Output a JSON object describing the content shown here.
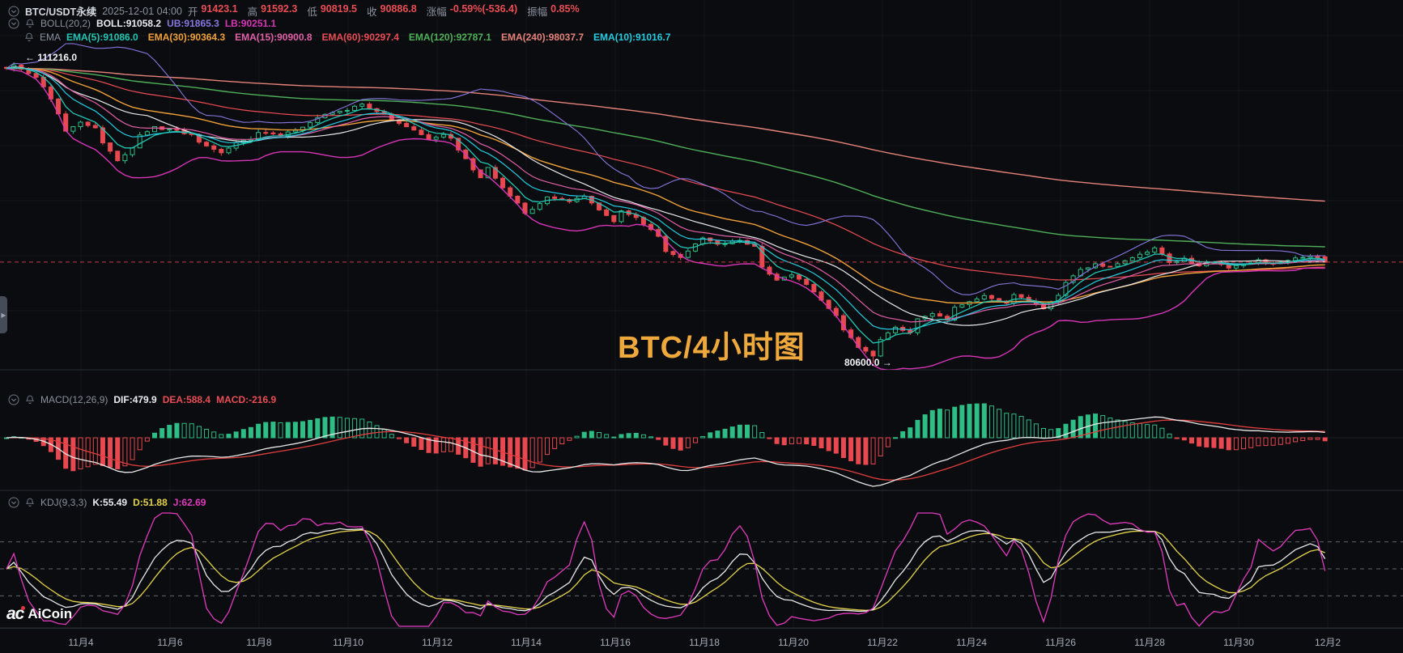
{
  "header": {
    "symbol": "BTC/USDT永续",
    "datetime": "2025-12-01 04:00",
    "ohlc": [
      {
        "label": "开",
        "value": "91423.1"
      },
      {
        "label": "高",
        "value": "91592.3"
      },
      {
        "label": "低",
        "value": "90819.5"
      },
      {
        "label": "收",
        "value": "90886.8"
      },
      {
        "label": "涨幅",
        "value": "-0.59%(-536.4)"
      },
      {
        "label": "振幅",
        "value": "0.85%"
      }
    ],
    "boll": {
      "name": "BOLL(20,2)",
      "mid_label": "BOLL:91058.2",
      "ub_label": "UB:91865.3",
      "lb_label": "LB:90251.1"
    },
    "ema": {
      "name": "EMA",
      "items": [
        {
          "label": "EMA(5):91086.0",
          "color": "#21c7b4"
        },
        {
          "label": "EMA(30):90364.3",
          "color": "#f0a13a"
        },
        {
          "label": "EMA(15):90900.8",
          "color": "#e160a8"
        },
        {
          "label": "EMA(60):90297.4",
          "color": "#ea4d55"
        },
        {
          "label": "EMA(120):92787.1",
          "color": "#4fb05a"
        },
        {
          "label": "EMA(240):98037.7",
          "color": "#e5837a"
        },
        {
          "label": "EMA(10):91016.7",
          "color": "#25cde3"
        }
      ]
    }
  },
  "macd_panel": {
    "name": "MACD(12,26,9)",
    "dif_label": "DIF:479.9",
    "dea_label": "DEA:588.4",
    "macd_label": "MACD:-216.9"
  },
  "kdj_panel": {
    "name": "KDJ(9,3,3)",
    "k_label": "K:55.49",
    "d_label": "D:51.88",
    "j_label": "J:62.69"
  },
  "annotations": {
    "high_label": "← 111216.0",
    "low_label": "80600.0 →",
    "watermark_title": "BTC/4小时图"
  },
  "branding": {
    "logo_mark": "ac",
    "logo_text": "AiCoin"
  },
  "x_axis": {
    "ticks": [
      "11月4",
      "11月6",
      "11月8",
      "11月10",
      "11月12",
      "11月14",
      "11月16",
      "11月18",
      "11月20",
      "11月22",
      "11月24",
      "11月26",
      "11月28",
      "11月30",
      "12月2"
    ]
  },
  "chart_data": {
    "type": "candlestick+indicators",
    "interval": "4h",
    "symbol": "BTC/USDT perpetual",
    "visible_price_range": [
      79500,
      112800
    ],
    "marked_high": 111216.0,
    "marked_low": 80600.0,
    "current_price": 90886.8,
    "last_candle": {
      "open": 91423.1,
      "high": 91592.3,
      "low": 90819.5,
      "close": 90886.8
    },
    "indicator_params": {
      "boll": [
        20,
        2
      ],
      "ema_periods": [
        5,
        10,
        15,
        30,
        60,
        120,
        240
      ],
      "macd": [
        12,
        26,
        9
      ],
      "kdj": [
        9,
        3,
        3
      ]
    },
    "indicator_values": {
      "boll_mid": 91058.2,
      "boll_ub": 91865.3,
      "boll_lb": 90251.1,
      "ema5": 91086.0,
      "ema10": 91016.7,
      "ema15": 90900.8,
      "ema30": 90364.3,
      "ema60": 90297.4,
      "ema120": 92787.1,
      "ema240": 98037.7,
      "dif": 479.9,
      "dea": 588.4,
      "macd": -216.9,
      "k": 55.49,
      "d": 51.88,
      "j": 62.69
    },
    "candle_count": 179,
    "close_waypoints": [
      [
        0,
        110500
      ],
      [
        1,
        110900
      ],
      [
        4,
        109700
      ],
      [
        6,
        107600
      ],
      [
        7,
        105900
      ],
      [
        8,
        104300
      ],
      [
        10,
        105200
      ],
      [
        12,
        104500
      ],
      [
        13,
        103000
      ],
      [
        15,
        101300
      ],
      [
        17,
        102500
      ],
      [
        18,
        103800
      ],
      [
        20,
        104600
      ],
      [
        23,
        104300
      ],
      [
        25,
        103800
      ],
      [
        27,
        102600
      ],
      [
        29,
        102100
      ],
      [
        31,
        103100
      ],
      [
        33,
        103300
      ],
      [
        34,
        104200
      ],
      [
        37,
        103800
      ],
      [
        39,
        104300
      ],
      [
        41,
        105100
      ],
      [
        43,
        105900
      ],
      [
        46,
        106400
      ],
      [
        48,
        106900
      ],
      [
        50,
        106300
      ],
      [
        53,
        105000
      ],
      [
        55,
        104300
      ],
      [
        57,
        103300
      ],
      [
        59,
        104000
      ],
      [
        60,
        103500
      ],
      [
        62,
        101300
      ],
      [
        64,
        99400
      ],
      [
        65,
        100500
      ],
      [
        67,
        98400
      ],
      [
        69,
        96900
      ],
      [
        70,
        95800
      ],
      [
        72,
        96800
      ],
      [
        73,
        97600
      ],
      [
        76,
        97100
      ],
      [
        78,
        97500
      ],
      [
        80,
        96300
      ],
      [
        82,
        95000
      ],
      [
        83,
        96200
      ],
      [
        85,
        95400
      ],
      [
        88,
        93500
      ],
      [
        89,
        92000
      ],
      [
        91,
        91300
      ],
      [
        93,
        92800
      ],
      [
        94,
        93300
      ],
      [
        96,
        92700
      ],
      [
        99,
        93100
      ],
      [
        101,
        92500
      ],
      [
        102,
        90300
      ],
      [
        104,
        89000
      ],
      [
        106,
        89500
      ],
      [
        108,
        88600
      ],
      [
        110,
        87000
      ],
      [
        112,
        85400
      ],
      [
        113,
        84000
      ],
      [
        115,
        82300
      ],
      [
        117,
        81200
      ],
      [
        118,
        83000
      ],
      [
        120,
        84300
      ],
      [
        122,
        83600
      ],
      [
        123,
        85000
      ],
      [
        125,
        85600
      ],
      [
        127,
        85100
      ],
      [
        128,
        86200
      ],
      [
        130,
        86900
      ],
      [
        132,
        87400
      ],
      [
        135,
        86800
      ],
      [
        136,
        87600
      ],
      [
        138,
        86900
      ],
      [
        140,
        86200
      ],
      [
        142,
        87500
      ],
      [
        143,
        88900
      ],
      [
        145,
        90100
      ],
      [
        147,
        90700
      ],
      [
        149,
        90400
      ],
      [
        151,
        91100
      ],
      [
        153,
        91700
      ],
      [
        155,
        92300
      ],
      [
        157,
        90900
      ],
      [
        159,
        91200
      ],
      [
        161,
        90600
      ],
      [
        163,
        90900
      ],
      [
        165,
        90300
      ],
      [
        167,
        90700
      ],
      [
        169,
        91000
      ],
      [
        171,
        90700
      ],
      [
        173,
        91100
      ],
      [
        175,
        91400
      ],
      [
        177,
        91423
      ],
      [
        178,
        90886.8
      ]
    ],
    "forced_points": {
      "high_at": [
        1,
        111216.0
      ],
      "low_at": [
        117,
        80600.0
      ]
    },
    "colors": {
      "bg": "#0b0c0f",
      "grid": "#14161b",
      "separator": "#272b32",
      "axis_text": "#a7adb8",
      "up": "#2ebd85",
      "down": "#e8484f",
      "price_line": "#d8434c",
      "boll_mid": "#e9e9ea",
      "boll_ub": "#8678e0",
      "boll_lb": "#d735b8",
      "ema5": "#21c7b4",
      "ema10": "#25cde3",
      "ema15": "#e160a8",
      "ema30": "#f0a13a",
      "ema60": "#ea4d55",
      "ema120": "#4fb05a",
      "ema240": "#e5837a",
      "dif": "#e9e9ea",
      "dea": "#e03e3e",
      "macd_up": "#2ebd85",
      "macd_down": "#e8484f",
      "k": "#e9e9ea",
      "d": "#e3d34b",
      "j": "#e23bbf",
      "kdj_dash": "#7e858e"
    }
  }
}
